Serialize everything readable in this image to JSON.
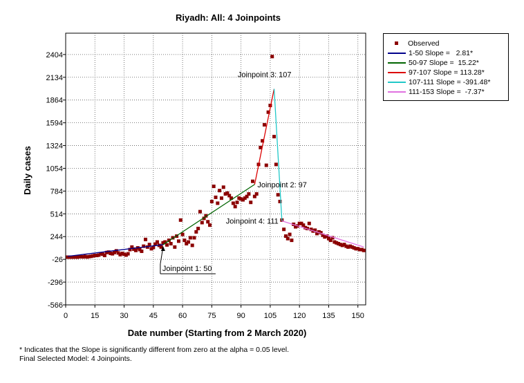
{
  "chart_data": {
    "type": "scatter",
    "title": "Riyadh: All: 4 Joinpoints",
    "xlabel": "Date number (Starting from 2 March 2020)",
    "ylabel": "Daily cases",
    "xlim": [
      0,
      154
    ],
    "ylim": [
      -566,
      2657
    ],
    "xticks": [
      0,
      15,
      30,
      45,
      60,
      75,
      90,
      105,
      120,
      135,
      150
    ],
    "xtick_labels": [
      "0",
      "15",
      "30",
      "45",
      "60",
      "75",
      "90",
      "105",
      "120",
      "135",
      "150"
    ],
    "yticks": [
      -566,
      -296,
      -26,
      244,
      514,
      784,
      1054,
      1324,
      1594,
      1864,
      2134,
      2404
    ],
    "ytick_labels": [
      "-566",
      "-296",
      "-26",
      "244",
      "514",
      "784",
      "1054",
      "1324",
      "1594",
      "1864",
      "2134",
      "2404"
    ],
    "grid": true,
    "legend_position": "right",
    "observed": {
      "name": "Observed",
      "color": "#8b0000",
      "x": [
        1,
        2,
        3,
        4,
        5,
        6,
        7,
        8,
        9,
        10,
        11,
        12,
        13,
        14,
        15,
        16,
        17,
        18,
        19,
        20,
        21,
        22,
        23,
        24,
        25,
        26,
        27,
        28,
        29,
        30,
        31,
        32,
        33,
        34,
        35,
        36,
        37,
        38,
        39,
        40,
        41,
        42,
        43,
        44,
        45,
        46,
        47,
        48,
        49,
        50,
        51,
        52,
        53,
        54,
        55,
        56,
        57,
        58,
        59,
        60,
        61,
        62,
        63,
        64,
        65,
        66,
        67,
        68,
        69,
        70,
        71,
        72,
        73,
        74,
        75,
        76,
        77,
        78,
        79,
        80,
        81,
        82,
        83,
        84,
        85,
        86,
        87,
        88,
        89,
        90,
        91,
        92,
        93,
        94,
        95,
        96,
        97,
        98,
        99,
        100,
        101,
        102,
        103,
        104,
        105,
        106,
        107,
        108,
        109,
        110,
        111,
        112,
        113,
        114,
        115,
        116,
        117,
        118,
        119,
        120,
        121,
        122,
        123,
        124,
        125,
        126,
        127,
        128,
        129,
        130,
        131,
        132,
        133,
        134,
        135,
        136,
        137,
        138,
        139,
        140,
        141,
        142,
        143,
        144,
        145,
        146,
        147,
        148,
        149,
        150,
        151,
        152,
        153
      ],
      "y": [
        0,
        0,
        0,
        0,
        2,
        0,
        5,
        5,
        3,
        8,
        2,
        7,
        10,
        15,
        20,
        20,
        25,
        40,
        35,
        20,
        55,
        60,
        45,
        40,
        55,
        75,
        50,
        30,
        45,
        35,
        25,
        40,
        90,
        120,
        95,
        80,
        110,
        90,
        70,
        130,
        210,
        120,
        150,
        100,
        115,
        155,
        180,
        140,
        120,
        170,
        180,
        145,
        200,
        160,
        230,
        120,
        250,
        190,
        440,
        270,
        200,
        160,
        180,
        230,
        140,
        230,
        300,
        340,
        540,
        410,
        460,
        490,
        420,
        380,
        660,
        840,
        710,
        640,
        790,
        700,
        830,
        750,
        760,
        730,
        700,
        640,
        600,
        650,
        700,
        690,
        680,
        700,
        720,
        750,
        650,
        900,
        720,
        750,
        1100,
        1300,
        1380,
        1570,
        1090,
        1720,
        1800,
        2380,
        1430,
        1100,
        740,
        660,
        440,
        330,
        250,
        220,
        270,
        200,
        390,
        360,
        370,
        400,
        400,
        380,
        350,
        340,
        400,
        330,
        310,
        320,
        280,
        300,
        290,
        260,
        240,
        250,
        220,
        200,
        230,
        180,
        170,
        160,
        150,
        140,
        150,
        130,
        120,
        130,
        120,
        110,
        100,
        100,
        90,
        90,
        80
      ]
    },
    "segments": [
      {
        "label": "1-50 Slope =   2.81*",
        "color": "#00008b",
        "x": [
          1,
          50
        ],
        "y": [
          10,
          148
        ]
      },
      {
        "label": "50-97 Slope =  15.22*",
        "color": "#006400",
        "x": [
          50,
          97
        ],
        "y": [
          148,
          863
        ]
      },
      {
        "label": "97-107 Slope = 113.28*",
        "color": "#dc0000",
        "x": [
          97,
          107
        ],
        "y": [
          863,
          1996
        ]
      },
      {
        "label": "107-111 Slope = -391.48*",
        "color": "#20c8c8",
        "x": [
          107,
          111
        ],
        "y": [
          1996,
          430
        ]
      },
      {
        "label": "111-153 Slope =  -7.37*",
        "color": "#e070e0",
        "x": [
          111,
          153
        ],
        "y": [
          430,
          121
        ]
      }
    ],
    "joinpoints": [
      {
        "label": "Joinpoint 1:  50",
        "x": 50,
        "y": 148
      },
      {
        "label": "Joinpoint 2:  97",
        "x": 97,
        "y": 863
      },
      {
        "label": "Joinpoint 3:  107",
        "x": 107,
        "y": 1996
      },
      {
        "label": "Joinpoint 4:  111",
        "x": 111,
        "y": 430
      }
    ]
  },
  "legend": {
    "observed_label": "Observed",
    "items": [
      {
        "label": "1-50 Slope =   2.81*",
        "color": "#00008b"
      },
      {
        "label": "50-97 Slope =  15.22*",
        "color": "#006400"
      },
      {
        "label": "97-107 Slope = 113.28*",
        "color": "#dc0000"
      },
      {
        "label": "107-111 Slope = -391.48*",
        "color": "#20c8c8"
      },
      {
        "label": "111-153 Slope =  -7.37*",
        "color": "#e070e0"
      }
    ]
  },
  "footnotes": {
    "significance": "* Indicates that the Slope is significantly different from zero at the alpha = 0.05 level.",
    "model": "Final Selected Model: 4 Joinpoints."
  }
}
